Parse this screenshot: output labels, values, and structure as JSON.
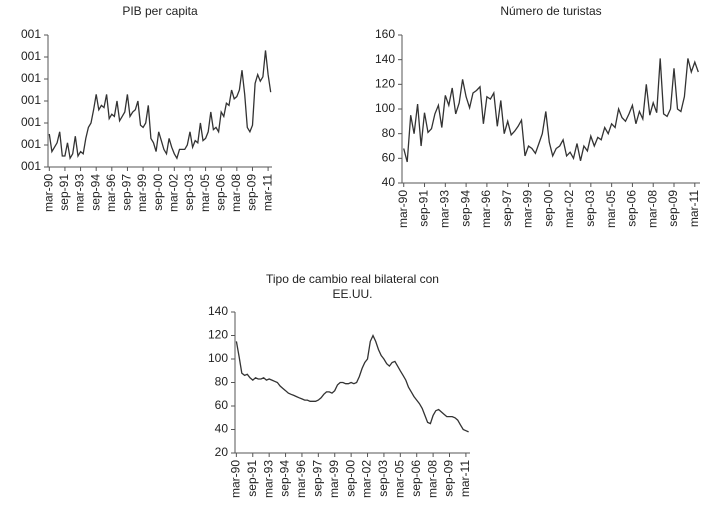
{
  "chart_data": [
    {
      "type": "line",
      "title": "PIB per capita",
      "categories": [
        "mar-90",
        null,
        null,
        null,
        null,
        null,
        "sep-91",
        null,
        null,
        null,
        null,
        null,
        "mar-93",
        null,
        null,
        null,
        null,
        null,
        "sep-94",
        null,
        null,
        null,
        null,
        null,
        "mar-96",
        null,
        null,
        null,
        null,
        null,
        "sep-97",
        null,
        null,
        null,
        null,
        null,
        "mar-99",
        null,
        null,
        null,
        null,
        null,
        "sep-00",
        null,
        null,
        null,
        null,
        null,
        "mar-02",
        null,
        null,
        null,
        null,
        null,
        "sep-03",
        null,
        null,
        null,
        null,
        null,
        "mar-05",
        null,
        null,
        null,
        null,
        null,
        "sep-06",
        null,
        null,
        null,
        null,
        null,
        "mar-08",
        null,
        null,
        null,
        null,
        null,
        "sep-09",
        null,
        null,
        null,
        null,
        null,
        "mar-11",
        null
      ],
      "values": [
        1.5,
        0.7,
        0.9,
        1.1,
        1.6,
        0.5,
        0.5,
        1.1,
        0.4,
        0.6,
        1.4,
        0.5,
        0.7,
        0.6,
        1.3,
        1.8,
        2.0,
        2.6,
        3.3,
        2.6,
        2.8,
        2.7,
        3.3,
        2.2,
        2.4,
        2.3,
        3.0,
        2.1,
        2.3,
        2.5,
        3.3,
        2.3,
        2.5,
        2.6,
        3.0,
        1.9,
        1.8,
        2.0,
        2.8,
        1.3,
        1.1,
        0.7,
        1.6,
        1.2,
        0.8,
        0.6,
        1.3,
        0.9,
        0.6,
        0.4,
        0.8,
        0.8,
        0.8,
        1.0,
        1.6,
        0.9,
        1.2,
        1.1,
        2.0,
        1.2,
        1.3,
        1.6,
        2.5,
        1.7,
        1.8,
        1.6,
        2.5,
        2.3,
        2.9,
        2.8,
        3.5,
        3.1,
        3.2,
        3.5,
        4.4,
        3.3,
        1.8,
        1.6,
        1.9,
        3.8,
        4.2,
        3.9,
        4.1,
        5.3,
        4.2,
        3.4
      ],
      "color": "#333333",
      "ylim": [
        0,
        6
      ],
      "yticks": [
        {
          "value": 0,
          "label": "001"
        },
        {
          "value": 1,
          "label": "001"
        },
        {
          "value": 2,
          "label": "001"
        },
        {
          "value": 3,
          "label": "001"
        },
        {
          "value": 4,
          "label": "001"
        },
        {
          "value": 5,
          "label": "001"
        },
        {
          "value": 6,
          "label": "001"
        }
      ]
    },
    {
      "type": "line",
      "title": "Número de turistas",
      "categories": [
        "mar-90",
        null,
        null,
        null,
        null,
        null,
        "sep-91",
        null,
        null,
        null,
        null,
        null,
        "mar-93",
        null,
        null,
        null,
        null,
        null,
        "sep-94",
        null,
        null,
        null,
        null,
        null,
        "mar-96",
        null,
        null,
        null,
        null,
        null,
        "sep-97",
        null,
        null,
        null,
        null,
        null,
        "mar-99",
        null,
        null,
        null,
        null,
        null,
        "sep-00",
        null,
        null,
        null,
        null,
        null,
        "mar-02",
        null,
        null,
        null,
        null,
        null,
        "sep-03",
        null,
        null,
        null,
        null,
        null,
        "mar-05",
        null,
        null,
        null,
        null,
        null,
        "sep-06",
        null,
        null,
        null,
        null,
        null,
        "mar-08",
        null,
        null,
        null,
        null,
        null,
        "sep-09",
        null,
        null,
        null,
        null,
        null,
        "mar-11",
        null
      ],
      "values": [
        68,
        57,
        95,
        80,
        104,
        70,
        97,
        81,
        84,
        96,
        103,
        85,
        111,
        103,
        117,
        96,
        105,
        124,
        110,
        101,
        113,
        115,
        118,
        88,
        110,
        108,
        113,
        86,
        107,
        80,
        90,
        79,
        82,
        86,
        91,
        62,
        70,
        68,
        64,
        72,
        80,
        98,
        73,
        62,
        68,
        70,
        75,
        62,
        65,
        60,
        72,
        58,
        70,
        66,
        78,
        70,
        77,
        75,
        85,
        80,
        88,
        85,
        100,
        93,
        90,
        96,
        103,
        88,
        98,
        92,
        120,
        95,
        105,
        97,
        141,
        96,
        94,
        100,
        133,
        100,
        98,
        110,
        141,
        130,
        138,
        130
      ],
      "color": "#333333",
      "ylim": [
        40,
        160
      ],
      "yticks": [
        40,
        60,
        80,
        100,
        120,
        140,
        160
      ]
    },
    {
      "type": "line",
      "title": [
        "Tipo de cambio real bilateral con",
        "EE.UU."
      ],
      "categories": [
        "mar-90",
        null,
        null,
        null,
        null,
        null,
        "sep-91",
        null,
        null,
        null,
        null,
        null,
        "mar-93",
        null,
        null,
        null,
        null,
        null,
        "sep-94",
        null,
        null,
        null,
        null,
        null,
        "mar-96",
        null,
        null,
        null,
        null,
        null,
        "sep-97",
        null,
        null,
        null,
        null,
        null,
        "mar-99",
        null,
        null,
        null,
        null,
        null,
        "sep-00",
        null,
        null,
        null,
        null,
        null,
        "mar-02",
        null,
        null,
        null,
        null,
        null,
        "sep-03",
        null,
        null,
        null,
        null,
        null,
        "mar-05",
        null,
        null,
        null,
        null,
        null,
        "sep-06",
        null,
        null,
        null,
        null,
        null,
        "mar-08",
        null,
        null,
        null,
        null,
        null,
        "sep-09",
        null,
        null,
        null,
        null,
        null,
        "mar-11",
        null
      ],
      "values": [
        115,
        102,
        88,
        86,
        87,
        84,
        82,
        84,
        83,
        83,
        84,
        82,
        83,
        82,
        81,
        80,
        77,
        75,
        73,
        71,
        70,
        69,
        68,
        67,
        66,
        65,
        65,
        64,
        64,
        64,
        65,
        67,
        70,
        72,
        72,
        71,
        73,
        78,
        80,
        80,
        79,
        79,
        80,
        79,
        80,
        85,
        92,
        97,
        100,
        115,
        120,
        115,
        108,
        103,
        100,
        96,
        94,
        97,
        98,
        94,
        90,
        86,
        82,
        76,
        72,
        68,
        65,
        62,
        58,
        52,
        46,
        45,
        52,
        56,
        57,
        55,
        53,
        51,
        51,
        51,
        50,
        48,
        44,
        40,
        39,
        38
      ],
      "color": "#333333",
      "ylim": [
        20,
        140
      ],
      "yticks": [
        20,
        40,
        60,
        80,
        100,
        120,
        140
      ]
    }
  ]
}
